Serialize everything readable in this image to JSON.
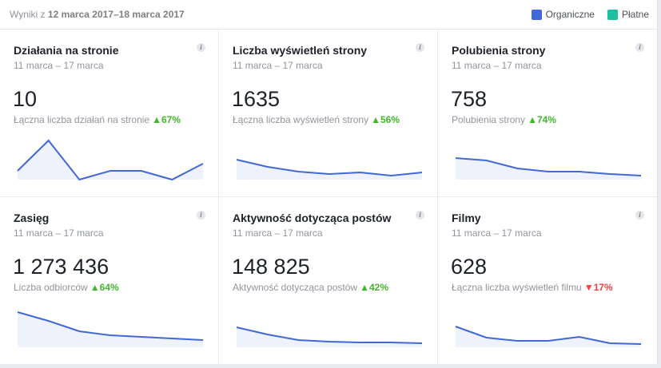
{
  "header": {
    "prefix": "Wyniki z ",
    "range": "12 marca 2017–18 marca 2017"
  },
  "legend": [
    {
      "label": "Organiczne",
      "color": "#4267d6"
    },
    {
      "label": "Płatne",
      "color": "#1fbfa3"
    }
  ],
  "colors": {
    "line": "#4267d6",
    "fill": "#eef2fc",
    "up": "#42b72a",
    "down": "#fa3e3e"
  },
  "cards": [
    {
      "title": "Działania na stronie",
      "range": "11 marca – 17 marca",
      "value": "10",
      "label": "Łączna liczba działań na stronie",
      "direction": "up",
      "change": "67%",
      "sparkline": [
        11,
        49,
        0,
        11,
        11,
        0,
        20
      ]
    },
    {
      "title": "Liczba wyświetleń strony",
      "range": "11 marca – 17 marca",
      "value": "1635",
      "label": "Łączna liczba wyświetleń strony",
      "direction": "up",
      "change": "56%",
      "sparkline": [
        25,
        16,
        10,
        7,
        9,
        5,
        9
      ]
    },
    {
      "title": "Polubienia strony",
      "range": "11 marca – 17 marca",
      "value": "758",
      "label": "Polubienia strony",
      "direction": "up",
      "change": "74%",
      "sparkline": [
        27,
        24,
        14,
        10,
        10,
        7,
        5
      ]
    },
    {
      "title": "Zasięg",
      "range": "11 marca – 17 marca",
      "value": "1 273 436",
      "label": "Liczba odbiorców",
      "direction": "up",
      "change": "64%",
      "sparkline": [
        44,
        33,
        20,
        15,
        13,
        11,
        9
      ]
    },
    {
      "title": "Aktywność dotycząca postów",
      "range": "11 marca – 17 marca",
      "value": "148 825",
      "label": "Aktywność dotycząca postów",
      "direction": "up",
      "change": "42%",
      "sparkline": [
        25,
        16,
        9,
        7,
        6,
        6,
        5
      ]
    },
    {
      "title": "Filmy",
      "range": "11 marca – 17 marca",
      "value": "628",
      "label": "Łączna liczba wyświetleń filmu",
      "direction": "down",
      "change": "17%",
      "sparkline": [
        26,
        12,
        8,
        8,
        13,
        5,
        4
      ]
    }
  ]
}
